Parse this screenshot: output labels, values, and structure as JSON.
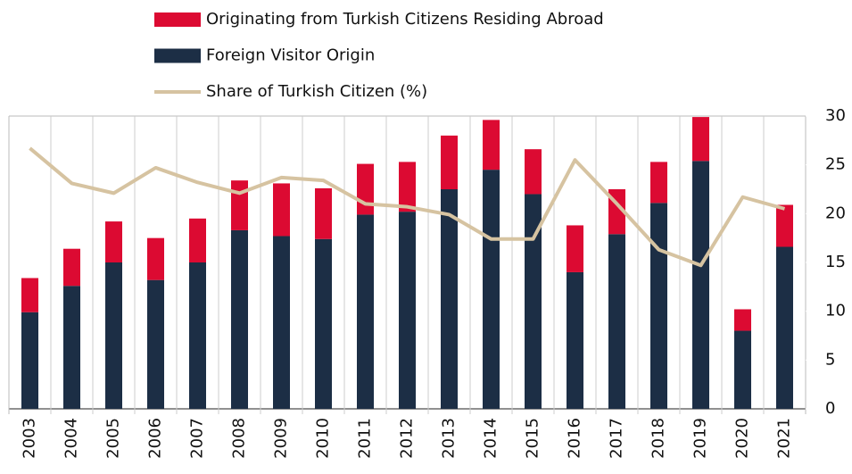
{
  "chart_data": {
    "type": "bar",
    "stacked": true,
    "categories": [
      "2003",
      "2004",
      "2005",
      "2006",
      "2007",
      "2008",
      "2009",
      "2010",
      "2011",
      "2012",
      "2013",
      "2014",
      "2015",
      "2016",
      "2017",
      "2018",
      "2019",
      "2020",
      "2021"
    ],
    "series": [
      {
        "name": "Originating from Turkish Citizens Residing Abroad",
        "color": "#dc0a32",
        "type": "bar",
        "values": [
          3.5,
          3.8,
          4.2,
          4.3,
          4.5,
          5.1,
          5.4,
          5.2,
          5.2,
          5.1,
          5.5,
          5.1,
          4.6,
          4.8,
          4.6,
          4.2,
          4.5,
          2.2,
          4.3
        ]
      },
      {
        "name": "Foreign Visitor Origin",
        "color": "#1c2e45",
        "type": "bar",
        "values": [
          9.9,
          12.6,
          15.0,
          13.2,
          15.0,
          18.3,
          17.7,
          17.4,
          19.9,
          20.2,
          22.5,
          24.5,
          22.0,
          14.0,
          17.9,
          21.1,
          25.4,
          8.0,
          16.6
        ]
      },
      {
        "name": "Share of Turkish Citizen (%)",
        "color": "#d6c3a1",
        "type": "line",
        "values": [
          26.7,
          23.1,
          22.1,
          24.7,
          23.2,
          22.1,
          23.7,
          23.4,
          21.0,
          20.7,
          19.9,
          17.4,
          17.4,
          25.5,
          21.0,
          16.3,
          14.7,
          21.7,
          20.5
        ]
      }
    ],
    "ylim": [
      0,
      30
    ],
    "yticks": [
      0,
      5,
      10,
      15,
      20,
      25,
      30
    ],
    "y_axis_side": "right",
    "grid": "vertical"
  }
}
